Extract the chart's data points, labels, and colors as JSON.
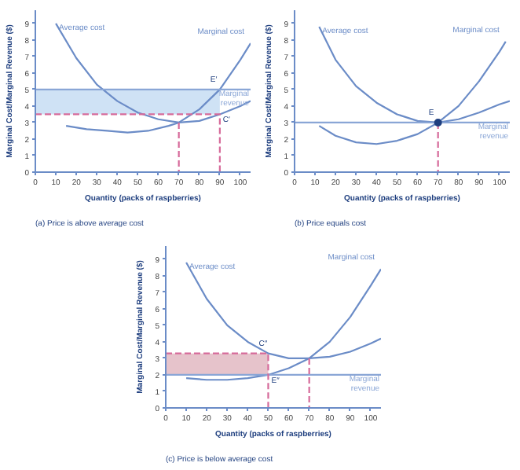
{
  "chart_data": [
    {
      "type": "line",
      "title": "(a) Price is above average cost",
      "xlabel": "Quantity (packs of raspberries)",
      "ylabel": "Marginal Cost/Marginal Revenue ($)",
      "xlim": [
        0,
        105
      ],
      "ylim": [
        0,
        9.8
      ],
      "xticks": [
        0,
        10,
        20,
        30,
        40,
        50,
        60,
        70,
        80,
        90,
        100
      ],
      "yticks": [
        0,
        1,
        2,
        3,
        4,
        5,
        6,
        7,
        8,
        9
      ],
      "grid": false,
      "series": [
        {
          "type": "bar",
          "color": "#cfe2f5",
          "x": [
            45
          ],
          "values": [
            1.5
          ],
          "base": [
            3.5
          ]
        },
        {
          "name": "Average cost",
          "color": "#6b8cc7",
          "x": [
            10,
            20,
            30,
            40,
            50,
            60,
            70,
            80,
            90,
            100,
            105
          ],
          "values": [
            9,
            6.9,
            5.3,
            4.3,
            3.6,
            3.2,
            3.0,
            3.1,
            3.5,
            4.0,
            4.3
          ]
        },
        {
          "name": "Marginal cost",
          "color": "#6b8cc7",
          "x": [
            15,
            25,
            35,
            45,
            55,
            65,
            70,
            80,
            90,
            100,
            105
          ],
          "values": [
            2.8,
            2.6,
            2.5,
            2.4,
            2.5,
            2.8,
            3.0,
            3.8,
            5.0,
            6.8,
            7.8
          ]
        },
        {
          "name": "Marginal revenue",
          "color": "#8aa6d6",
          "x": [
            0,
            105
          ],
          "values": [
            5,
            5
          ]
        },
        {
          "color": "#d66a9a",
          "line_style": "dashed",
          "x": [
            0,
            90,
            90
          ],
          "values": [
            3.5,
            3.5,
            0
          ]
        },
        {
          "color": "#d66a9a",
          "line_style": "dashed",
          "x": [
            70,
            70
          ],
          "values": [
            3,
            0
          ]
        }
      ],
      "annotations": [
        {
          "text": "E′",
          "x": 90,
          "y": 5
        },
        {
          "text": "C′",
          "x": 90,
          "y": 3.5
        }
      ]
    },
    {
      "type": "line",
      "title": "(b) Price equals cost",
      "xlabel": "Quantity (packs of raspberries)",
      "ylabel": "Marginal Cost/Marginal Revenue ($)",
      "xlim": [
        0,
        105
      ],
      "ylim": [
        0,
        9.8
      ],
      "xticks": [
        0,
        10,
        20,
        30,
        40,
        50,
        60,
        70,
        80,
        90,
        100
      ],
      "yticks": [
        0,
        1,
        2,
        3,
        4,
        5,
        6,
        7,
        8,
        9
      ],
      "grid": false,
      "series": [
        {
          "name": "Average cost",
          "color": "#6b8cc7",
          "x": [
            12,
            20,
            30,
            40,
            50,
            60,
            70,
            80,
            90,
            100,
            105
          ],
          "values": [
            8.8,
            6.8,
            5.2,
            4.2,
            3.5,
            3.1,
            3.0,
            3.2,
            3.6,
            4.1,
            4.3
          ]
        },
        {
          "name": "Marginal cost",
          "color": "#6b8cc7",
          "x": [
            12,
            20,
            30,
            40,
            50,
            60,
            70,
            80,
            90,
            100,
            103
          ],
          "values": [
            2.8,
            2.2,
            1.8,
            1.7,
            1.9,
            2.3,
            3.0,
            4.0,
            5.5,
            7.3,
            7.9
          ]
        },
        {
          "name": "Marginal revenue",
          "color": "#8aa6d6",
          "x": [
            0,
            105
          ],
          "values": [
            3,
            3
          ]
        },
        {
          "color": "#d66a9a",
          "line_style": "dashed",
          "x": [
            70,
            70
          ],
          "values": [
            3,
            0
          ]
        },
        {
          "type": "scatter",
          "marker": "circle",
          "color": "#1f3f7f",
          "x": [
            70
          ],
          "values": [
            3
          ]
        }
      ],
      "annotations": [
        {
          "text": "E",
          "x": 70,
          "y": 3
        }
      ]
    },
    {
      "type": "line",
      "title": "(c) Price is below average cost",
      "xlabel": "Quantity (packs of raspberries)",
      "ylabel": "Marginal Cost/Marginal Revenue ($)",
      "xlim": [
        0,
        105
      ],
      "ylim": [
        0,
        9.8
      ],
      "xticks": [
        0,
        10,
        20,
        30,
        40,
        50,
        60,
        70,
        80,
        90,
        100
      ],
      "yticks": [
        0,
        1,
        2,
        3,
        4,
        5,
        6,
        7,
        8,
        9
      ],
      "grid": false,
      "series": [
        {
          "type": "bar",
          "color": "#e6c3cb",
          "x": [
            25
          ],
          "values": [
            1.3
          ],
          "base": [
            2
          ]
        },
        {
          "name": "Average cost",
          "color": "#6b8cc7",
          "x": [
            10,
            20,
            30,
            40,
            50,
            60,
            70,
            80,
            90,
            100,
            105
          ],
          "values": [
            8.8,
            6.6,
            5.0,
            4.0,
            3.3,
            3.0,
            3.0,
            3.1,
            3.4,
            3.9,
            4.2
          ]
        },
        {
          "name": "Marginal cost",
          "color": "#6b8cc7",
          "x": [
            10,
            20,
            30,
            40,
            50,
            60,
            70,
            80,
            90,
            100,
            105
          ],
          "values": [
            1.8,
            1.7,
            1.7,
            1.8,
            2.0,
            2.4,
            3.0,
            4.0,
            5.5,
            7.4,
            8.4
          ]
        },
        {
          "name": "Marginal revenue",
          "color": "#8aa6d6",
          "x": [
            0,
            105
          ],
          "values": [
            2,
            2
          ]
        },
        {
          "color": "#d66a9a",
          "line_style": "dashed",
          "x": [
            0,
            50,
            50
          ],
          "values": [
            3.3,
            3.3,
            0
          ]
        },
        {
          "color": "#d66a9a",
          "line_style": "dashed",
          "x": [
            70,
            70
          ],
          "values": [
            3.0,
            0
          ]
        }
      ],
      "annotations": [
        {
          "text": "C″",
          "x": 50,
          "y": 3.3
        },
        {
          "text": "E″",
          "x": 50,
          "y": 2
        }
      ]
    }
  ]
}
